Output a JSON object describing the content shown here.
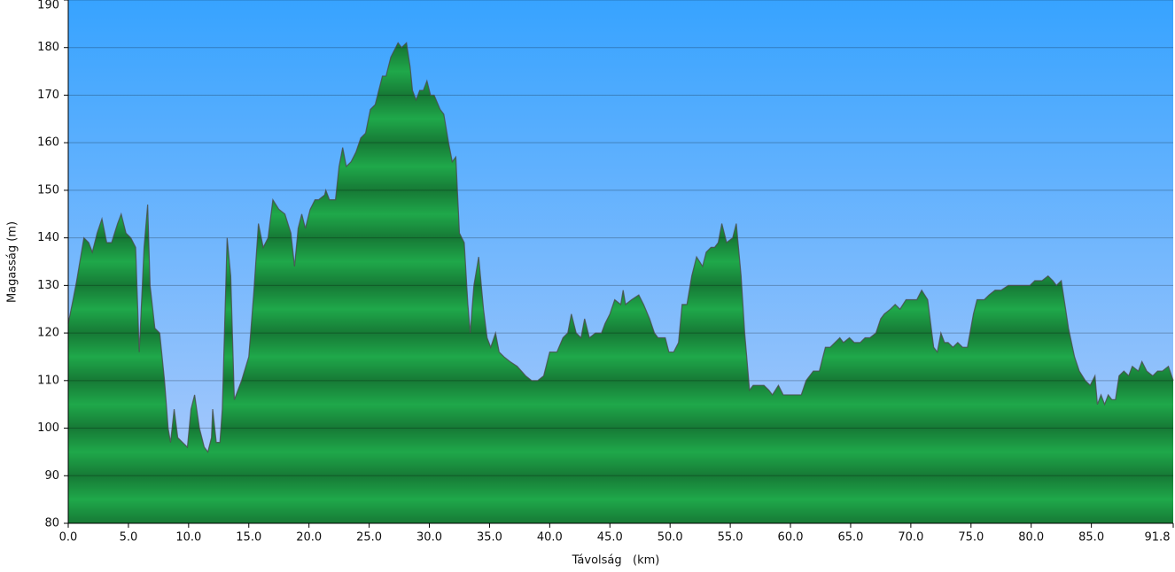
{
  "chart_data": {
    "type": "area",
    "x_label": "Távolság   (km)",
    "y_label": "Magasság (m)",
    "color": "#1fa84a",
    "line_color": "#4a4a4a",
    "grid": true,
    "xlim": [
      0,
      91.8
    ],
    "ylim": [
      80,
      190
    ],
    "xticks": [
      {
        "value": 0,
        "label": "0.0"
      },
      {
        "value": 5,
        "label": "5.0"
      },
      {
        "value": 10,
        "label": "10.0"
      },
      {
        "value": 15,
        "label": "15.0"
      },
      {
        "value": 20,
        "label": "20.0"
      },
      {
        "value": 25,
        "label": "25.0"
      },
      {
        "value": 30,
        "label": "30.0"
      },
      {
        "value": 35,
        "label": "35.0"
      },
      {
        "value": 40,
        "label": "40.0"
      },
      {
        "value": 45,
        "label": "45.0"
      },
      {
        "value": 50,
        "label": "50.0"
      },
      {
        "value": 55,
        "label": "55.0"
      },
      {
        "value": 60,
        "label": "60.0"
      },
      {
        "value": 65,
        "label": "65.0"
      },
      {
        "value": 70,
        "label": "70.0"
      },
      {
        "value": 75,
        "label": "75.0"
      },
      {
        "value": 80,
        "label": "80.0"
      },
      {
        "value": 85,
        "label": "85.0"
      },
      {
        "value": 91.8,
        "label": "91.8"
      }
    ],
    "yticks": [
      80,
      90,
      100,
      110,
      120,
      130,
      140,
      150,
      160,
      170,
      180,
      190
    ],
    "x": [
      0.0,
      0.4,
      0.7,
      1.3,
      1.7,
      2.0,
      2.4,
      2.8,
      3.2,
      3.6,
      4.1,
      4.4,
      4.8,
      5.2,
      5.6,
      5.9,
      6.3,
      6.6,
      6.8,
      7.2,
      7.6,
      8.0,
      8.3,
      8.5,
      8.8,
      9.1,
      9.5,
      9.9,
      10.2,
      10.5,
      10.9,
      11.3,
      11.6,
      11.9,
      12.0,
      12.3,
      12.6,
      12.8,
      13.2,
      13.5,
      13.8,
      14.1,
      14.4,
      15.0,
      15.4,
      15.8,
      16.2,
      16.6,
      17.0,
      17.5,
      18.0,
      18.5,
      18.8,
      19.1,
      19.4,
      19.7,
      20.1,
      20.5,
      20.8,
      21.3,
      21.4,
      21.7,
      22.2,
      22.5,
      22.8,
      23.1,
      23.5,
      23.9,
      24.3,
      24.7,
      25.1,
      25.5,
      25.8,
      26.1,
      26.4,
      26.8,
      27.2,
      27.4,
      27.7,
      28.1,
      28.4,
      28.6,
      28.9,
      29.2,
      29.5,
      29.8,
      30.1,
      30.4,
      30.9,
      31.2,
      31.6,
      31.9,
      32.2,
      32.5,
      32.9,
      33.2,
      33.4,
      33.7,
      34.1,
      34.5,
      34.8,
      35.1,
      35.5,
      35.8,
      36.2,
      36.7,
      37.3,
      38.0,
      38.5,
      39.0,
      39.5,
      40.0,
      40.6,
      41.1,
      41.5,
      41.8,
      42.2,
      42.6,
      42.9,
      43.3,
      43.8,
      44.3,
      44.6,
      45.0,
      45.4,
      45.9,
      46.1,
      46.3,
      46.8,
      47.4,
      47.8,
      48.3,
      48.7,
      49.0,
      49.6,
      49.9,
      50.3,
      50.7,
      51.0,
      51.4,
      51.8,
      52.2,
      52.7,
      53.0,
      53.4,
      53.7,
      54.0,
      54.3,
      54.7,
      55.2,
      55.5,
      55.9,
      56.2,
      56.6,
      56.9,
      57.4,
      57.8,
      58.2,
      58.5,
      59.0,
      59.4,
      59.9,
      60.4,
      60.9,
      61.3,
      61.9,
      62.4,
      62.9,
      63.3,
      63.7,
      64.1,
      64.4,
      64.9,
      65.3,
      65.8,
      66.2,
      66.6,
      67.1,
      67.5,
      67.8,
      68.3,
      68.7,
      69.1,
      69.6,
      70.0,
      70.5,
      70.9,
      71.4,
      71.7,
      71.9,
      72.2,
      72.5,
      72.8,
      73.1,
      73.5,
      73.9,
      74.3,
      74.7,
      75.2,
      75.5,
      76.1,
      76.5,
      77.0,
      77.5,
      78.1,
      78.6,
      79.0,
      79.5,
      79.9,
      80.3,
      80.9,
      81.4,
      81.8,
      82.1,
      82.5,
      82.8,
      83.1,
      83.6,
      84.0,
      84.5,
      84.9,
      85.3,
      85.5,
      85.8,
      86.1,
      86.4,
      86.7,
      87.0,
      87.3,
      87.7,
      88.1,
      88.4,
      88.9,
      89.2,
      89.6,
      90.1,
      90.5,
      90.9,
      91.4,
      91.8
    ],
    "values": [
      122,
      127,
      131,
      140,
      139,
      137,
      141,
      144,
      139,
      139,
      143,
      145,
      141,
      140,
      138,
      116,
      138,
      147,
      130,
      121,
      120,
      110,
      100,
      97,
      104,
      98,
      97,
      96,
      104,
      107,
      100,
      96,
      95,
      98,
      104,
      97,
      97,
      104,
      140,
      132,
      106,
      108,
      110,
      115,
      128,
      143,
      138,
      140,
      148,
      146,
      145,
      141,
      134,
      142,
      145,
      142,
      146,
      148,
      148,
      149,
      150,
      148,
      148,
      155,
      159,
      155,
      156,
      158,
      161,
      162,
      167,
      168,
      171,
      174,
      174,
      178,
      180,
      181,
      180,
      181,
      176,
      171,
      169,
      171,
      171,
      173,
      170,
      170,
      167,
      166,
      160,
      156,
      157,
      141,
      139,
      126,
      120,
      130,
      136,
      125,
      119,
      117,
      120,
      116,
      115,
      114,
      113,
      111,
      110,
      110,
      111,
      116,
      116,
      119,
      120,
      124,
      120,
      119,
      123,
      119,
      120,
      120,
      122,
      124,
      127,
      126,
      129,
      126,
      127,
      128,
      126,
      123,
      120,
      119,
      119,
      116,
      116,
      118,
      126,
      126,
      132,
      136,
      134,
      137,
      138,
      138,
      139,
      143,
      139,
      140,
      143,
      132,
      120,
      108,
      109,
      109,
      109,
      108,
      107,
      109,
      107,
      107,
      107,
      107,
      110,
      112,
      112,
      117,
      117,
      118,
      119,
      118,
      119,
      118,
      118,
      119,
      119,
      120,
      123,
      124,
      125,
      126,
      125,
      127,
      127,
      127,
      129,
      127,
      121,
      117,
      116,
      120,
      118,
      118,
      117,
      118,
      117,
      117,
      124,
      127,
      127,
      128,
      129,
      129,
      130,
      130,
      130,
      130,
      130,
      131,
      131,
      132,
      131,
      130,
      131,
      126,
      121,
      115,
      112,
      110,
      109,
      111,
      105,
      107,
      105,
      107,
      106,
      106,
      111,
      112,
      111,
      113,
      112,
      114,
      112,
      111,
      112,
      112,
      113,
      110
    ]
  }
}
